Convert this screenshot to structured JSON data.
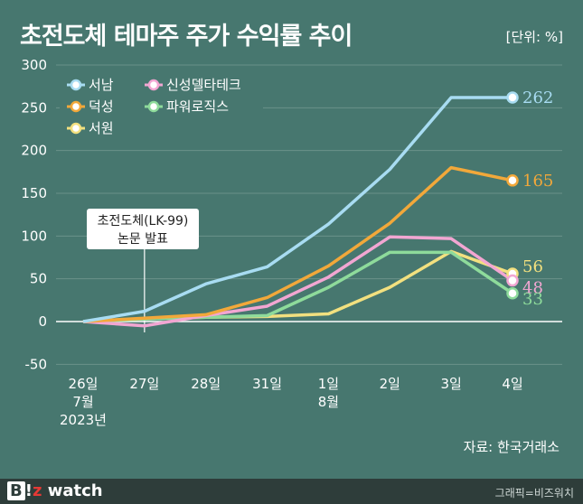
{
  "header": {
    "title": "초전도체 테마주 주가 수익률 추이",
    "unit": "[단위: %]"
  },
  "footer": {
    "source": "자료: 한국거래소",
    "brand_b": "B",
    "brand_i": "!",
    "brand_z": "z",
    "brand_watch": " watch",
    "credit": "그래픽=비즈워치"
  },
  "chart_data": {
    "type": "line",
    "categories": [
      "26일",
      "27일",
      "28일",
      "31일",
      "1일",
      "2일",
      "3일",
      "4일"
    ],
    "category_sublabels": [
      [
        "7월",
        "2023년"
      ],
      [],
      [],
      [],
      [
        "8월"
      ],
      [],
      [],
      []
    ],
    "ylim": [
      -50,
      300
    ],
    "yticks": [
      -50,
      0,
      50,
      100,
      150,
      200,
      250,
      300
    ],
    "grid": true,
    "legend": "top-left",
    "series": [
      {
        "name": "서남",
        "color": "#A8DCF2",
        "values": [
          0,
          12,
          44,
          64,
          114,
          178,
          262,
          262
        ],
        "end_label": "262"
      },
      {
        "name": "덕성",
        "color": "#F2A83A",
        "values": [
          0,
          4,
          8,
          28,
          65,
          115,
          180,
          165
        ],
        "end_label": "165"
      },
      {
        "name": "서원",
        "color": "#F2E07F",
        "values": [
          0,
          3,
          5,
          6,
          9,
          40,
          82,
          56
        ],
        "end_label": "56"
      },
      {
        "name": "신성델타테크",
        "color": "#F2A6D2",
        "values": [
          0,
          -5,
          7,
          18,
          52,
          99,
          97,
          48
        ],
        "end_label": "48"
      },
      {
        "name": "파워로직스",
        "color": "#8EDB9B",
        "values": [
          0,
          3,
          5,
          7,
          40,
          81,
          81,
          33
        ],
        "end_label": "33"
      }
    ],
    "annotation": {
      "lines": [
        "초전도체(LK-99)",
        "논문 발표"
      ],
      "category_index": 1
    }
  }
}
